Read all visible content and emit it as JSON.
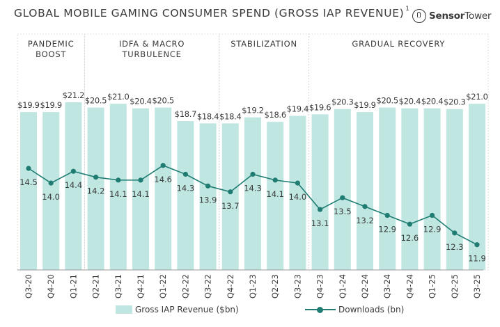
{
  "header": {
    "title": "GLOBAL MOBILE GAMING CONSUMER SPEND (GROSS IAP REVENUE)",
    "footnote_marker": "1",
    "brand_bold": "Sensor",
    "brand_regular": "Tower"
  },
  "colors": {
    "bar": "#bfe6e1",
    "line": "#1f7c72",
    "text": "#3a3a3a",
    "panel_border": "#d4d4d4"
  },
  "chart_data": {
    "type": "bar",
    "title": "GLOBAL MOBILE GAMING CONSUMER SPEND (GROSS IAP REVENUE)",
    "xlabel": "",
    "ylabel": "",
    "categories": [
      "Q3-20",
      "Q4-20",
      "Q1-21",
      "Q2-21",
      "Q3-21",
      "Q4-21",
      "Q1-22",
      "Q2-22",
      "Q3-22",
      "Q4-22",
      "Q1-23",
      "Q2-23",
      "Q3-23",
      "Q4-23",
      "Q1-24",
      "Q2-24",
      "Q3-24",
      "Q4-24",
      "Q1-25",
      "Q2-25",
      "Q3-25"
    ],
    "series": [
      {
        "name": "Gross IAP Revenue ($bn)",
        "type": "bar",
        "values": [
          19.9,
          19.9,
          21.2,
          20.5,
          21.0,
          20.4,
          20.5,
          18.7,
          18.4,
          18.4,
          19.2,
          18.6,
          19.4,
          19.6,
          20.3,
          19.9,
          20.5,
          20.4,
          20.4,
          20.3,
          21.0
        ],
        "labels": [
          "$19.9",
          "$19.9",
          "$21.2",
          "$20.5",
          "$21.0",
          "$20.4",
          "$20.5",
          "$18.7",
          "$18.4",
          "$18.4",
          "$19.2",
          "$18.6",
          "$19.4",
          "$19.6",
          "$20.3",
          "$19.9",
          "$20.5",
          "$20.4",
          "$20.4",
          "$20.3",
          "$21.0"
        ]
      },
      {
        "name": "Downloads (bn)",
        "type": "line",
        "values": [
          14.5,
          14.0,
          14.4,
          14.2,
          14.1,
          14.1,
          14.6,
          14.3,
          13.9,
          13.7,
          14.3,
          14.1,
          14.0,
          13.1,
          13.5,
          13.2,
          12.9,
          12.6,
          12.9,
          12.3,
          11.9
        ],
        "labels": [
          "14.5",
          "14.0",
          "14.4",
          "14.2",
          "14.1",
          "14.1",
          "14.6",
          "14.3",
          "13.9",
          "13.7",
          "14.3",
          "14.1",
          "14.0",
          "13.1",
          "13.5",
          "13.2",
          "12.9",
          "12.6",
          "12.9",
          "12.3",
          "11.9"
        ]
      }
    ],
    "periods": [
      {
        "lines": [
          "PANDEMIC",
          "BOOST"
        ],
        "start": 0,
        "end": 2
      },
      {
        "lines": [
          "IDFA & MACRO",
          "TURBULENCE"
        ],
        "start": 3,
        "end": 8
      },
      {
        "lines": [
          "STABILIZATION"
        ],
        "start": 9,
        "end": 12
      },
      {
        "lines": [
          "GRADUAL RECOVERY"
        ],
        "start": 13,
        "end": 20
      }
    ],
    "legend": [
      "Gross IAP Revenue ($bn)",
      "Downloads (bn)"
    ],
    "legend_position": "bottom",
    "grid": false
  }
}
